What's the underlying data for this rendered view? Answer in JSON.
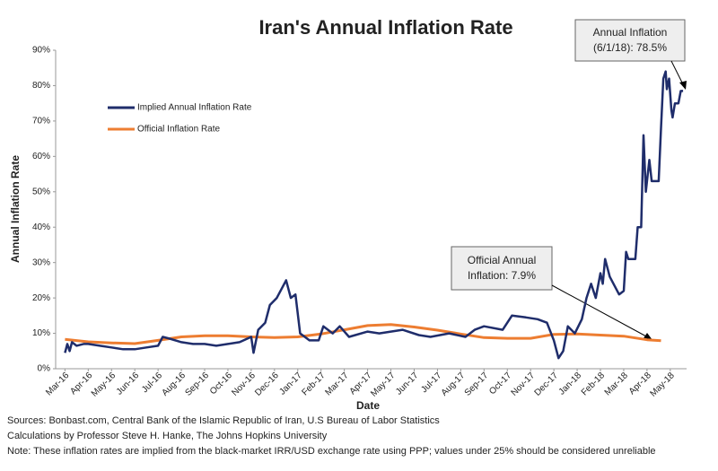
{
  "chart_data": {
    "type": "line",
    "title": "Iran's Annual Inflation Rate",
    "x_label": "Date",
    "y_label": "Annual Inflation Rate",
    "xlim": [
      -0.4,
      26.7
    ],
    "xticks": [
      {
        "value": 0,
        "label": "Mar-16"
      },
      {
        "value": 1,
        "label": "Apr-16"
      },
      {
        "value": 2,
        "label": "May-16"
      },
      {
        "value": 3,
        "label": "Jun-16"
      },
      {
        "value": 4,
        "label": "Jul-16"
      },
      {
        "value": 5,
        "label": "Aug-16"
      },
      {
        "value": 6,
        "label": "Sep-16"
      },
      {
        "value": 7,
        "label": "Oct-16"
      },
      {
        "value": 8,
        "label": "Nov-16"
      },
      {
        "value": 9,
        "label": "Dec-16"
      },
      {
        "value": 10,
        "label": "Jan-17"
      },
      {
        "value": 11,
        "label": "Feb-17"
      },
      {
        "value": 12,
        "label": "Mar-17"
      },
      {
        "value": 13,
        "label": "Apr-17"
      },
      {
        "value": 14,
        "label": "May-17"
      },
      {
        "value": 15,
        "label": "Jun-17"
      },
      {
        "value": 16,
        "label": "Jul-17"
      },
      {
        "value": 17,
        "label": "Aug-17"
      },
      {
        "value": 18,
        "label": "Sep-17"
      },
      {
        "value": 19,
        "label": "Oct-17"
      },
      {
        "value": 20,
        "label": "Nov-17"
      },
      {
        "value": 21,
        "label": "Dec-17"
      },
      {
        "value": 22,
        "label": "Jan-18"
      },
      {
        "value": 23,
        "label": "Feb-18"
      },
      {
        "value": 24,
        "label": "Mar-18"
      },
      {
        "value": 25,
        "label": "Apr-18"
      },
      {
        "value": 26,
        "label": "May-18"
      }
    ],
    "ylim": [
      0,
      90
    ],
    "yticks": [
      {
        "value": 0,
        "label": "0%"
      },
      {
        "value": 10,
        "label": "10%"
      },
      {
        "value": 20,
        "label": "20%"
      },
      {
        "value": 30,
        "label": "30%"
      },
      {
        "value": 40,
        "label": "40%"
      },
      {
        "value": 50,
        "label": "50%"
      },
      {
        "value": 60,
        "label": "60%"
      },
      {
        "value": 70,
        "label": "70%"
      },
      {
        "value": 80,
        "label": "80%"
      },
      {
        "value": 90,
        "label": "90%"
      }
    ],
    "series": [
      {
        "name": "Implied Annual Inflation Rate",
        "color": "#1f2d6b",
        "x": [
          0,
          0.1,
          0.2,
          0.3,
          0.5,
          0.8,
          1,
          1.5,
          2,
          2.5,
          3,
          3.5,
          4,
          4.2,
          4.5,
          5,
          5.5,
          6,
          6.5,
          7,
          7.5,
          8,
          8.1,
          8.3,
          8.6,
          8.8,
          9.1,
          9.5,
          9.7,
          9.9,
          10.1,
          10.5,
          10.9,
          11.1,
          11.5,
          11.8,
          12.2,
          13,
          13.5,
          14.5,
          15.2,
          15.7,
          16.5,
          17.2,
          17.6,
          18,
          18.8,
          19.2,
          19.8,
          20.3,
          20.7,
          21,
          21.2,
          21.4,
          21.6,
          21.9,
          22.2,
          22.4,
          22.6,
          22.8,
          23,
          23.1,
          23.2,
          23.4,
          23.8,
          24,
          24.1,
          24.2,
          24.5,
          24.6,
          24.75,
          24.85,
          24.95,
          25.1,
          25.2,
          25.5,
          25.6,
          25.7,
          25.8,
          25.85,
          25.95,
          26.05,
          26.1,
          26.2,
          26.35,
          26.45,
          26.55
        ],
        "values": [
          4.5,
          7,
          5,
          7.5,
          6.5,
          7,
          7,
          6.5,
          6,
          5.5,
          5.5,
          6,
          6.5,
          9,
          8.5,
          7.5,
          7,
          7,
          6.5,
          7,
          7.5,
          9,
          4.5,
          11,
          13,
          18,
          20,
          25,
          20,
          21,
          10,
          8,
          8,
          12,
          10,
          12,
          9,
          10.5,
          10,
          11,
          9.5,
          9,
          10,
          9,
          11,
          12,
          11,
          15,
          14.5,
          14,
          13,
          8,
          3,
          5,
          12,
          10,
          14,
          20,
          24,
          20,
          27,
          24,
          31,
          26,
          21,
          22,
          33,
          31,
          31,
          40,
          40,
          66,
          50,
          59,
          53,
          53,
          68,
          82,
          84,
          79,
          82,
          73,
          71,
          75,
          75,
          78.5,
          78.5
        ]
      },
      {
        "name": "Official Inflation Rate",
        "color": "#ed7d31",
        "x": [
          0,
          1,
          2,
          3,
          4,
          5,
          6,
          7,
          8,
          9,
          10,
          11,
          12,
          13,
          14,
          15,
          16,
          17,
          18,
          19,
          20,
          21,
          22,
          23,
          24,
          25,
          25.6
        ],
        "values": [
          8.3,
          7.6,
          7.3,
          7.1,
          8.0,
          9.0,
          9.3,
          9.3,
          9.0,
          8.8,
          9.0,
          9.8,
          11.0,
          12.2,
          12.5,
          11.8,
          10.9,
          9.8,
          8.8,
          8.6,
          8.6,
          9.7,
          9.8,
          9.5,
          9.2,
          8.2,
          7.9
        ]
      }
    ],
    "annotations": [
      [
        "Annual Inflation",
        "(6/1/18): 78.5%"
      ],
      [
        "Official Annual",
        "Inflation: 7.9%"
      ]
    ],
    "notes": [
      "Sources: Bonbast.com, Central Bank of the Islamic Republic of Iran, U.S Bureau of Labor Statistics",
      "Calculations by Professor Steve H. Hanke, The Johns Hopkins University",
      "Note: These inflation rates are implied from the black-market IRR/USD exchange rate using PPP; values under 25% should be considered unreliable"
    ]
  }
}
